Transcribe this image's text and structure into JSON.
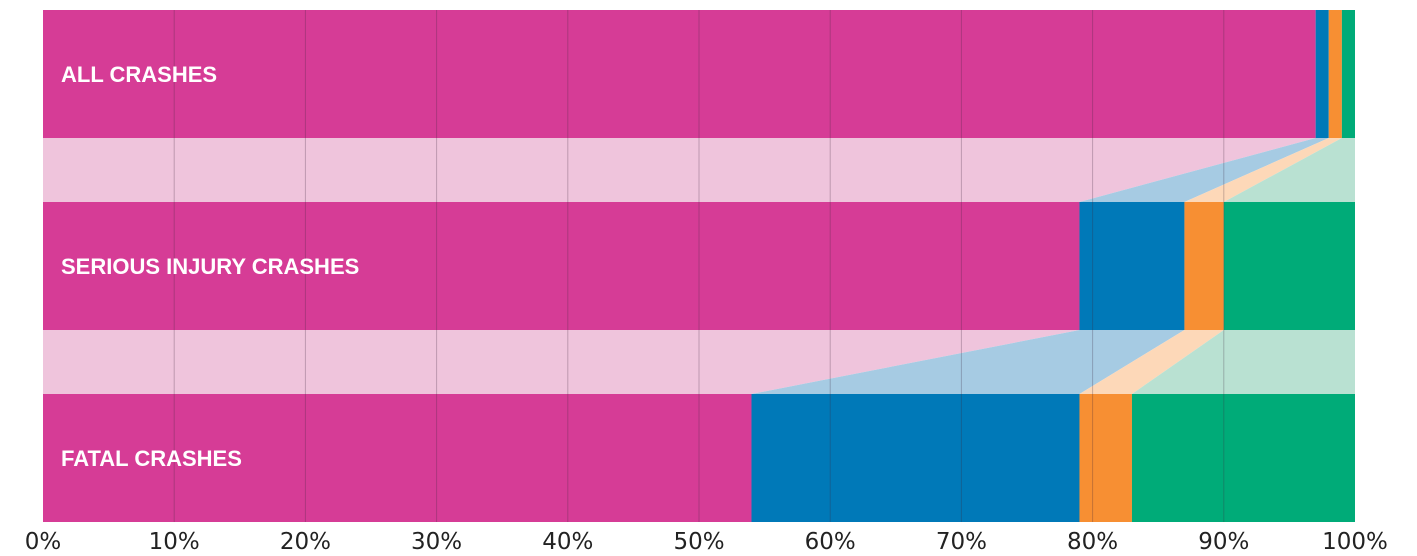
{
  "chart_data": {
    "type": "bar",
    "stacked": true,
    "orientation": "horizontal",
    "normalized_percent": true,
    "categories": [
      "ALL CRASHES",
      "SERIOUS INJURY CRASHES",
      "FATAL CRASHES"
    ],
    "series": [
      {
        "color": "#d63c96",
        "values": [
          97,
          79,
          54
        ]
      },
      {
        "color": "#0079b8",
        "values": [
          1,
          8,
          25
        ]
      },
      {
        "color": "#f78f33",
        "values": [
          1,
          3,
          4
        ]
      },
      {
        "color": "#00ab78",
        "values": [
          1,
          10,
          17
        ]
      }
    ],
    "connector_colors": [
      "#efc4dc",
      "#a6cbe3",
      "#fdd8b8",
      "#b9e1d2"
    ],
    "xlim": [
      0,
      100
    ],
    "x_ticks": [
      "0%",
      "10%",
      "20%",
      "30%",
      "40%",
      "50%",
      "60%",
      "70%",
      "80%",
      "90%",
      "100%"
    ],
    "grid": true,
    "legend": "none"
  }
}
